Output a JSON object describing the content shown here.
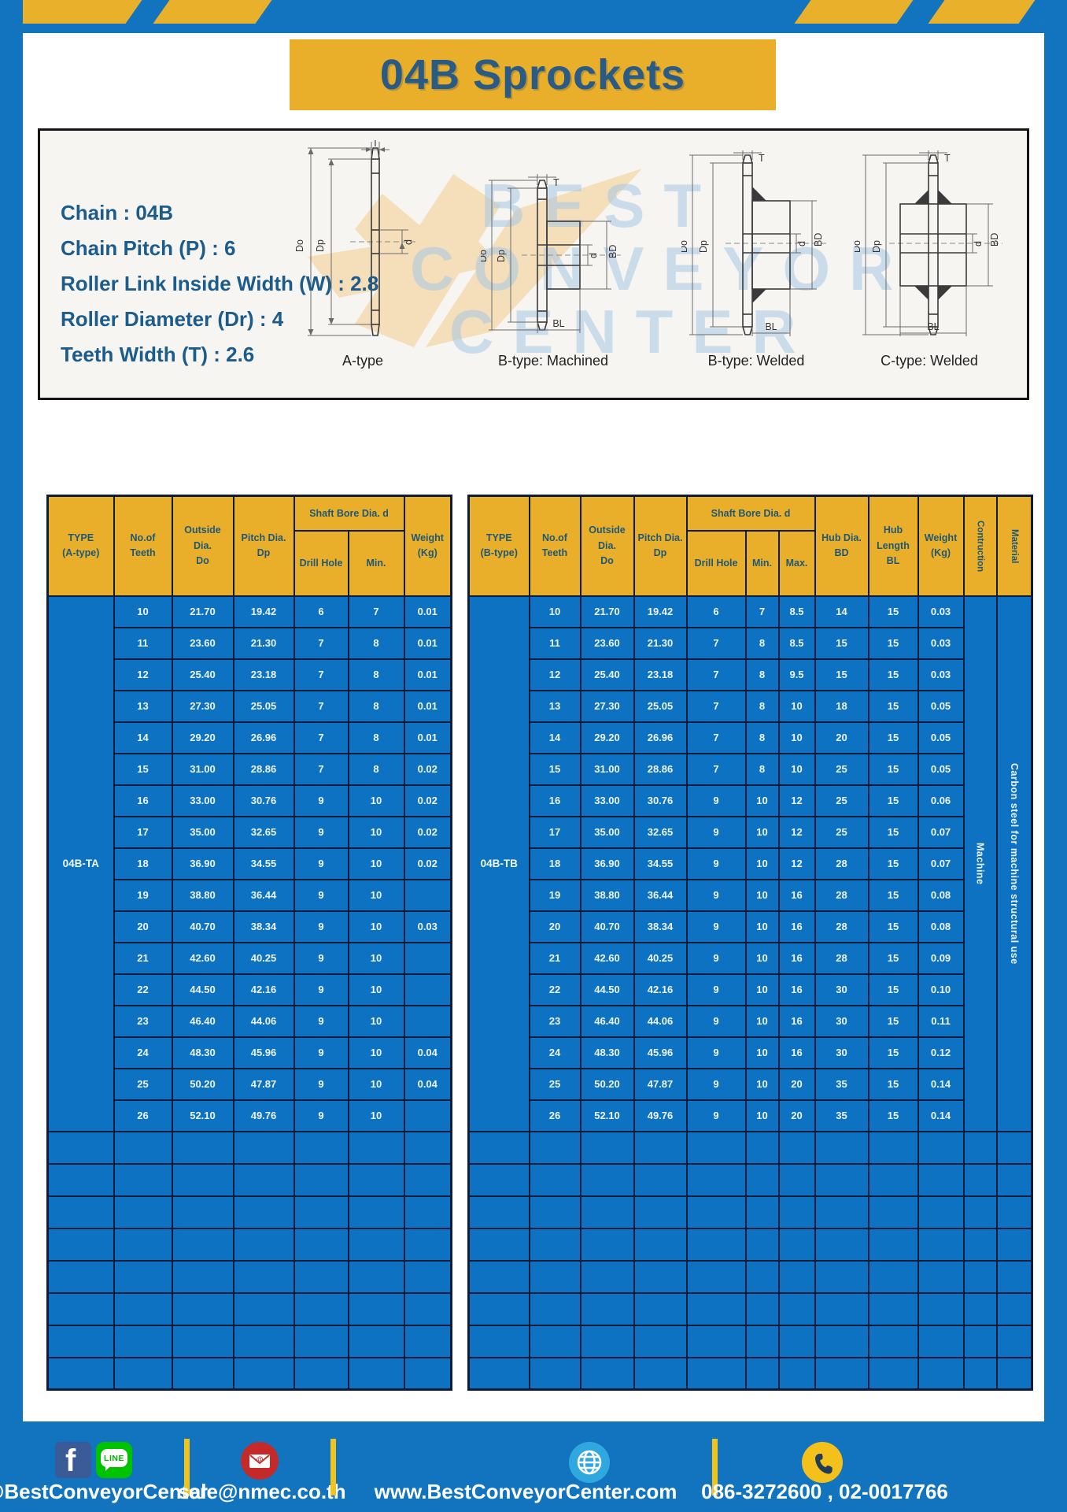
{
  "page": {
    "title": "04B Sprockets"
  },
  "specs": {
    "lines": [
      "Chain : 04B",
      "Chain Pitch (P) : 6",
      "Roller Link Inside Width (W) : 2.8",
      "Roller Diameter (Dr) : 4",
      "Teeth Width (T) : 2.6"
    ]
  },
  "diagrams": {
    "captions": [
      "A-type",
      "B-type: Machined",
      "B-type: Welded",
      "C-type: Welded"
    ],
    "dim_labels": {
      "t": "T",
      "do": "Do",
      "dp": "Dp",
      "d": "d",
      "bd": "BD",
      "bl": "BL"
    }
  },
  "watermark": {
    "lines": [
      "BEST",
      "CONVEYOR",
      "CENTER"
    ]
  },
  "colors": {
    "banner_blue": "#1274BE",
    "accent_yellow": "#E9AF2B",
    "table_blue": "#0E72C2",
    "border_navy": "#0C1D3C",
    "header_text": "#1F5876",
    "spec_text": "#1C5C8C"
  },
  "table_a": {
    "head": {
      "type": [
        "TYPE",
        "(A-type)"
      ],
      "teeth": [
        "No.of",
        "Teeth"
      ],
      "outside": [
        "Outside",
        "Dia.",
        "Do"
      ],
      "pitch": [
        "Pitch Dia.",
        "Dp"
      ],
      "shaft": "Shaft Bore Dia. d",
      "drill": "Drill Hole",
      "min": "Min.",
      "weight": [
        "Weight",
        "(Kg)"
      ]
    },
    "type_label": "04B-TA",
    "rows": [
      [
        "10",
        "21.70",
        "19.42",
        "6",
        "7",
        "0.01"
      ],
      [
        "11",
        "23.60",
        "21.30",
        "7",
        "8",
        "0.01"
      ],
      [
        "12",
        "25.40",
        "23.18",
        "7",
        "8",
        "0.01"
      ],
      [
        "13",
        "27.30",
        "25.05",
        "7",
        "8",
        "0.01"
      ],
      [
        "14",
        "29.20",
        "26.96",
        "7",
        "8",
        "0.01"
      ],
      [
        "15",
        "31.00",
        "28.86",
        "7",
        "8",
        "0.02"
      ],
      [
        "16",
        "33.00",
        "30.76",
        "9",
        "10",
        "0.02"
      ],
      [
        "17",
        "35.00",
        "32.65",
        "9",
        "10",
        "0.02"
      ],
      [
        "18",
        "36.90",
        "34.55",
        "9",
        "10",
        "0.02"
      ],
      [
        "19",
        "38.80",
        "36.44",
        "9",
        "10",
        ""
      ],
      [
        "20",
        "40.70",
        "38.34",
        "9",
        "10",
        "0.03"
      ],
      [
        "21",
        "42.60",
        "40.25",
        "9",
        "10",
        ""
      ],
      [
        "22",
        "44.50",
        "42.16",
        "9",
        "10",
        ""
      ],
      [
        "23",
        "46.40",
        "44.06",
        "9",
        "10",
        ""
      ],
      [
        "24",
        "48.30",
        "45.96",
        "9",
        "10",
        "0.04"
      ],
      [
        "25",
        "50.20",
        "47.87",
        "9",
        "10",
        "0.04"
      ],
      [
        "26",
        "52.10",
        "49.76",
        "9",
        "10",
        ""
      ]
    ],
    "empty_rows": 8
  },
  "table_b": {
    "head": {
      "type": [
        "TYPE",
        "(B-type)"
      ],
      "teeth": [
        "No.of",
        "Teeth"
      ],
      "outside": [
        "Outside",
        "Dia.",
        "Do"
      ],
      "pitch": [
        "Pitch Dia.",
        "Dp"
      ],
      "shaft": "Shaft Bore Dia. d",
      "drill": "Drill Hole",
      "min": "Min.",
      "max": "Max.",
      "hub_dia": [
        "Hub Dia.",
        "BD"
      ],
      "hub_len": [
        "Hub",
        "Length",
        "BL"
      ],
      "weight": [
        "Weight",
        "(Kg)"
      ],
      "construction": "Contruction",
      "material": "Material"
    },
    "type_label": "04B-TB",
    "construction": "Machine",
    "material": "Carbon steel for machine structural use",
    "rows": [
      [
        "10",
        "21.70",
        "19.42",
        "6",
        "7",
        "8.5",
        "14",
        "15",
        "0.03"
      ],
      [
        "11",
        "23.60",
        "21.30",
        "7",
        "8",
        "8.5",
        "15",
        "15",
        "0.03"
      ],
      [
        "12",
        "25.40",
        "23.18",
        "7",
        "8",
        "9.5",
        "15",
        "15",
        "0.03"
      ],
      [
        "13",
        "27.30",
        "25.05",
        "7",
        "8",
        "10",
        "18",
        "15",
        "0.05"
      ],
      [
        "14",
        "29.20",
        "26.96",
        "7",
        "8",
        "10",
        "20",
        "15",
        "0.05"
      ],
      [
        "15",
        "31.00",
        "28.86",
        "7",
        "8",
        "10",
        "25",
        "15",
        "0.05"
      ],
      [
        "16",
        "33.00",
        "30.76",
        "9",
        "10",
        "12",
        "25",
        "15",
        "0.06"
      ],
      [
        "17",
        "35.00",
        "32.65",
        "9",
        "10",
        "12",
        "25",
        "15",
        "0.07"
      ],
      [
        "18",
        "36.90",
        "34.55",
        "9",
        "10",
        "12",
        "28",
        "15",
        "0.07"
      ],
      [
        "19",
        "38.80",
        "36.44",
        "9",
        "10",
        "16",
        "28",
        "15",
        "0.08"
      ],
      [
        "20",
        "40.70",
        "38.34",
        "9",
        "10",
        "16",
        "28",
        "15",
        "0.08"
      ],
      [
        "21",
        "42.60",
        "40.25",
        "9",
        "10",
        "16",
        "28",
        "15",
        "0.09"
      ],
      [
        "22",
        "44.50",
        "42.16",
        "9",
        "10",
        "16",
        "30",
        "15",
        "0.10"
      ],
      [
        "23",
        "46.40",
        "44.06",
        "9",
        "10",
        "16",
        "30",
        "15",
        "0.11"
      ],
      [
        "24",
        "48.30",
        "45.96",
        "9",
        "10",
        "16",
        "30",
        "15",
        "0.12"
      ],
      [
        "25",
        "50.20",
        "47.87",
        "9",
        "10",
        "20",
        "35",
        "15",
        "0.14"
      ],
      [
        "26",
        "52.10",
        "49.76",
        "9",
        "10",
        "20",
        "35",
        "15",
        "0.14"
      ]
    ],
    "empty_rows": 8
  },
  "footer": {
    "facebook_letter": "f",
    "line_text": "LINE",
    "email_at": "@",
    "items": [
      {
        "icon": "facebook-line",
        "label": "@BestConveyorCenter"
      },
      {
        "icon": "email",
        "label": "sale@nmec.co.th"
      },
      {
        "icon": "globe",
        "label": "www.BestConveyorCenter.com"
      },
      {
        "icon": "phone",
        "label": "086-3272600 , 02-0017766"
      }
    ]
  }
}
